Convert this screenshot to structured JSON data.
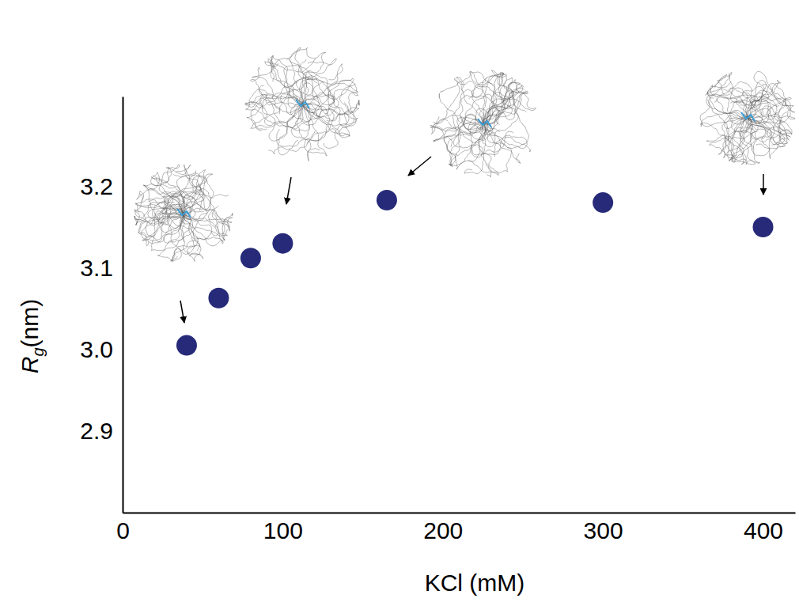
{
  "chart_data": {
    "type": "scatter",
    "x_label": "KCl (mM)",
    "y_label": "Rg(nm)",
    "x": [
      40,
      60,
      80,
      100,
      165,
      300,
      400
    ],
    "values": [
      3.005,
      3.063,
      3.112,
      3.13,
      3.183,
      3.18,
      3.15
    ],
    "color": "#262a78",
    "marker": "circle",
    "xlim": [
      0,
      420
    ],
    "xticks": [
      0,
      100,
      200,
      300,
      400
    ],
    "ylim": [
      2.8,
      3.31
    ],
    "yticks": [
      2.9,
      {
        "value": 3,
        "label": "3.0"
      },
      3.1,
      3.2
    ],
    "grid": false
  }
}
